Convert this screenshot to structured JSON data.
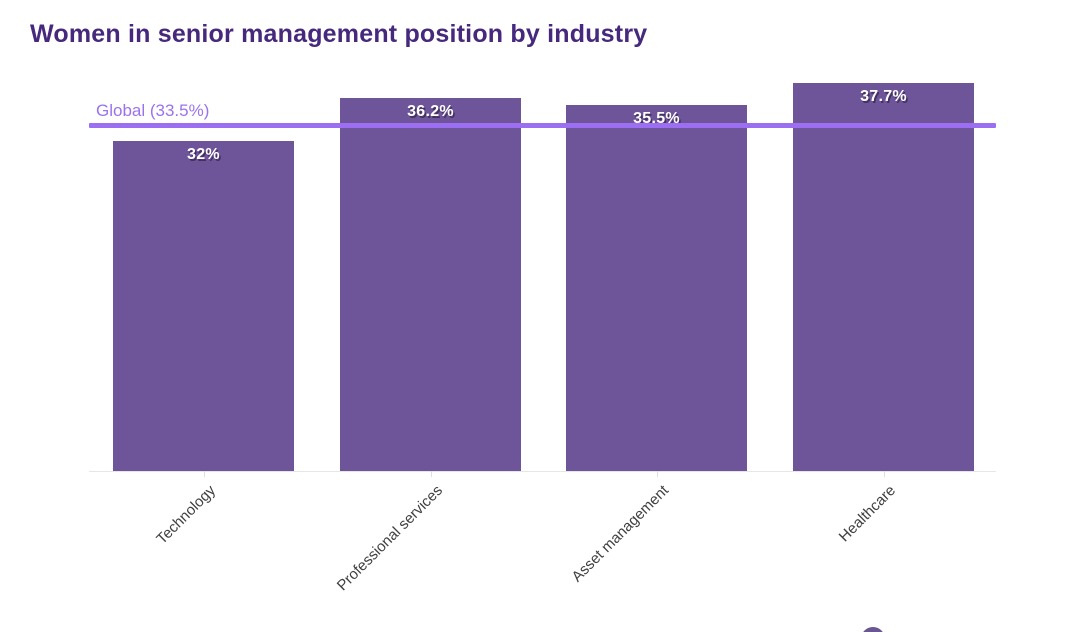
{
  "chart_data": {
    "type": "bar",
    "title": "Women in senior management position by industry",
    "categories": [
      "Technology",
      "Professional services",
      "Asset management",
      "Healthcare"
    ],
    "values": [
      32,
      36.2,
      35.5,
      37.7
    ],
    "value_labels": [
      "32%",
      "36.2%",
      "35.5%",
      "37.7%"
    ],
    "reference_line": {
      "label": "Global (33.5%)",
      "value": 33.5
    },
    "xlabel": "",
    "ylabel": "",
    "ylim": [
      0,
      38.8
    ],
    "grid": "off",
    "legend": "none",
    "x_axis_label_rotation_deg": -45,
    "colors": {
      "bar": "#6e5499",
      "reference_line": "#9c6ef2",
      "reference_label_text": "#9b72ee",
      "title_text": "#46287d",
      "axis_label_text": "#3f3f3f",
      "axis_line": "#e6e6e6",
      "value_label_text": "#ffffff",
      "value_label_shadow": "#43305f"
    }
  },
  "footer": {
    "logo_name": "brand-circle-logo"
  }
}
